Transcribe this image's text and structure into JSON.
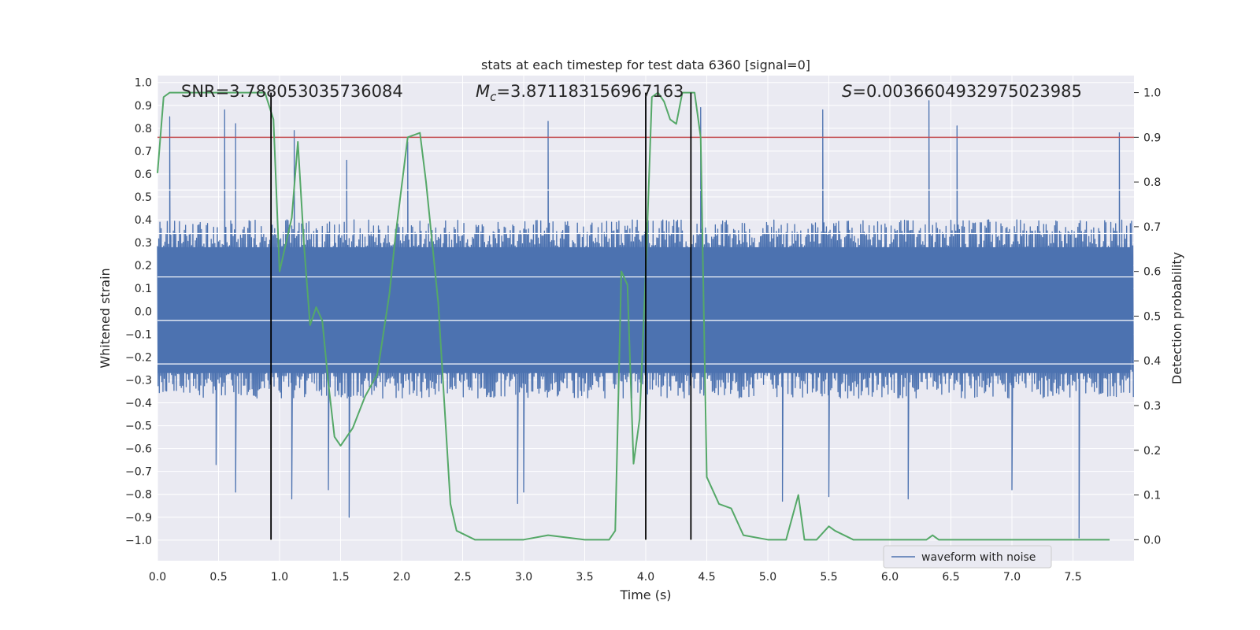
{
  "chart_data": {
    "type": "line",
    "title": "stats at each timestep for test data 6360 [signal=0]",
    "xlabel": "Time (s)",
    "ylabel_left": "Whitened strain",
    "ylabel_right": "Detection probability",
    "xlim": [
      0.0,
      8.0
    ],
    "ylim_left": [
      -1.09,
      1.03
    ],
    "ylim_right": [
      -0.047,
      1.038
    ],
    "x_ticks": [
      "0.0",
      "0.5",
      "1.0",
      "1.5",
      "2.0",
      "2.5",
      "3.0",
      "3.5",
      "4.0",
      "4.5",
      "5.0",
      "5.5",
      "6.0",
      "6.5",
      "7.0",
      "7.5"
    ],
    "y_ticks_left": [
      "1.0",
      "0.9",
      "0.8",
      "0.7",
      "0.6",
      "0.5",
      "0.4",
      "0.3",
      "0.2",
      "0.1",
      "0.0",
      "−0.1",
      "−0.2",
      "−0.3",
      "−0.4",
      "−0.5",
      "−0.6",
      "−0.7",
      "−0.8",
      "−0.9",
      "−1.0"
    ],
    "y_ticks_right": [
      "1.0",
      "0.9",
      "0.8",
      "0.7",
      "0.6",
      "0.5",
      "0.4",
      "0.3",
      "0.2",
      "0.1",
      "0.0"
    ],
    "annotations": {
      "snr": "SNR=3.788053035736084",
      "mc_prefix": "M",
      "mc_sub": "c",
      "mc_value": "=3.871183156967163",
      "s_prefix": "S",
      "s_value": "=0.0036604932975023985"
    },
    "legend": {
      "label": "waveform with noise",
      "placement": "lower-right"
    },
    "grid": true,
    "colors": {
      "background": "#eaeaf2",
      "grid": "#ffffff",
      "waveform": "#4c72b0",
      "probability": "#55a868",
      "threshold": "#c44e52",
      "markers": "#000000"
    },
    "threshold_line_probability": 0.9,
    "vertical_markers_time": [
      0.93,
      4.0,
      4.37
    ],
    "series": [
      {
        "name": "waveform with noise",
        "axis": "left",
        "kind": "noise-trace",
        "sample_rate_points_per_s": 100,
        "typical_max": 0.4,
        "typical_min": -0.38,
        "spikes_up": [
          [
            0.1,
            0.85
          ],
          [
            0.55,
            0.88
          ],
          [
            0.64,
            0.82
          ],
          [
            1.12,
            0.79
          ],
          [
            1.55,
            0.66
          ],
          [
            2.05,
            0.74
          ],
          [
            3.2,
            0.83
          ],
          [
            4.0,
            0.95
          ],
          [
            4.45,
            0.89
          ],
          [
            5.45,
            0.88
          ],
          [
            6.32,
            0.92
          ],
          [
            6.55,
            0.81
          ],
          [
            7.88,
            0.78
          ]
        ],
        "spikes_down": [
          [
            0.48,
            -0.67
          ],
          [
            0.64,
            -0.79
          ],
          [
            1.1,
            -0.82
          ],
          [
            1.4,
            -0.78
          ],
          [
            1.57,
            -0.9
          ],
          [
            2.95,
            -0.84
          ],
          [
            3.0,
            -0.79
          ],
          [
            4.0,
            -0.79
          ],
          [
            5.12,
            -0.83
          ],
          [
            5.5,
            -0.81
          ],
          [
            6.15,
            -0.82
          ],
          [
            7.0,
            -0.78
          ],
          [
            7.55,
            -0.99
          ]
        ]
      },
      {
        "name": "",
        "axis": "right",
        "kind": "line",
        "x": [
          0.0,
          0.05,
          0.1,
          0.15,
          0.25,
          0.5,
          0.7,
          0.88,
          0.95,
          1.0,
          1.1,
          1.15,
          1.2,
          1.25,
          1.3,
          1.35,
          1.4,
          1.45,
          1.5,
          1.55,
          1.6,
          1.7,
          1.8,
          1.9,
          1.95,
          2.05,
          2.15,
          2.2,
          2.3,
          2.4,
          2.45,
          2.6,
          3.0,
          3.2,
          3.5,
          3.7,
          3.75,
          3.8,
          3.85,
          3.9,
          3.95,
          4.0,
          4.05,
          4.1,
          4.15,
          4.2,
          4.25,
          4.3,
          4.4,
          4.45,
          4.5,
          4.6,
          4.7,
          4.8,
          5.0,
          5.15,
          5.25,
          5.3,
          5.4,
          5.5,
          5.55,
          5.7,
          6.0,
          6.3,
          6.35,
          6.4,
          6.5,
          7.0,
          7.5,
          7.8
        ],
        "y": [
          0.82,
          0.99,
          1.0,
          1.0,
          1.0,
          1.0,
          1.0,
          1.0,
          0.94,
          0.6,
          0.72,
          0.89,
          0.66,
          0.48,
          0.52,
          0.49,
          0.35,
          0.23,
          0.21,
          0.23,
          0.25,
          0.32,
          0.37,
          0.55,
          0.68,
          0.9,
          0.91,
          0.8,
          0.53,
          0.08,
          0.02,
          0.0,
          0.0,
          0.01,
          0.0,
          0.0,
          0.02,
          0.6,
          0.57,
          0.17,
          0.27,
          0.6,
          0.99,
          1.0,
          0.98,
          0.94,
          0.93,
          1.0,
          1.0,
          0.9,
          0.14,
          0.08,
          0.07,
          0.01,
          0.0,
          0.0,
          0.1,
          0.0,
          0.0,
          0.03,
          0.02,
          0.0,
          0.0,
          0.0,
          0.01,
          0.0,
          0.0,
          0.0,
          0.0,
          0.0
        ]
      }
    ]
  }
}
